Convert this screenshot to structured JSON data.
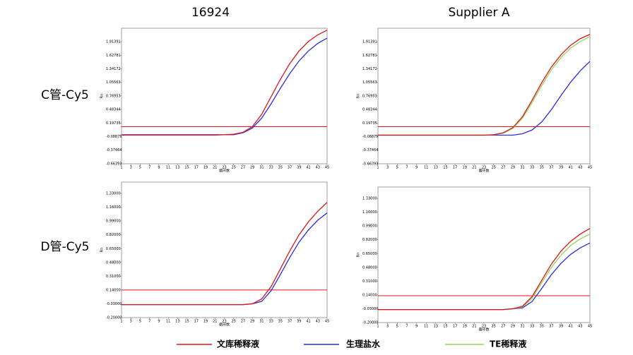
{
  "columns": [
    "16924",
    "Supplier A"
  ],
  "rows": [
    "C管-Cy5",
    "D管-Cy5"
  ],
  "legend": [
    {
      "name": "文库稀释液",
      "color": "#e0151b"
    },
    {
      "name": "生理盐水",
      "color": "#2a2de0"
    },
    {
      "name": "TE稀释液",
      "color": "#8ed65a"
    }
  ],
  "chart_data": [
    {
      "type": "line",
      "xlabel": "循环数",
      "ylabel": "Rn",
      "x": [
        1,
        3,
        5,
        7,
        9,
        11,
        13,
        15,
        17,
        19,
        21,
        23,
        25,
        27,
        29,
        31,
        33,
        35,
        37,
        39,
        41,
        43,
        45
      ],
      "xlim": [
        1,
        45
      ],
      "xticks": [
        1,
        3,
        5,
        7,
        9,
        11,
        13,
        15,
        17,
        19,
        21,
        23,
        25,
        27,
        29,
        31,
        33,
        35,
        37,
        39,
        41,
        43,
        45
      ],
      "ylim": [
        -0.66393,
        2.2
      ],
      "yticks": [
        -0.66393,
        -0.37464,
        -0.08875,
        0.19735,
        0.48344,
        0.76953,
        1.05563,
        1.34172,
        1.62781,
        1.91391
      ],
      "threshold": 0.12,
      "threshold_color": "#e0151b",
      "series": [
        {
          "color": "#2a2de0",
          "values": [
            -0.05,
            -0.05,
            -0.05,
            -0.05,
            -0.05,
            -0.05,
            -0.05,
            -0.05,
            -0.05,
            -0.05,
            -0.05,
            -0.05,
            -0.05,
            -0.01,
            0.09,
            0.3,
            0.6,
            0.93,
            1.24,
            1.51,
            1.72,
            1.88,
            1.99
          ]
        },
        {
          "color": "#e0151b",
          "values": [
            -0.06,
            -0.06,
            -0.06,
            -0.06,
            -0.06,
            -0.06,
            -0.06,
            -0.06,
            -0.06,
            -0.06,
            -0.06,
            -0.05,
            -0.04,
            0.0,
            0.12,
            0.38,
            0.75,
            1.12,
            1.45,
            1.72,
            1.92,
            2.06,
            2.16
          ]
        }
      ]
    },
    {
      "type": "line",
      "xlabel": "循环数",
      "ylabel": "Rn",
      "x": [
        1,
        3,
        5,
        7,
        9,
        11,
        13,
        15,
        17,
        19,
        21,
        23,
        25,
        27,
        29,
        31,
        33,
        35,
        37,
        39,
        41,
        43,
        45
      ],
      "xlim": [
        1,
        45
      ],
      "xticks": [
        1,
        3,
        5,
        7,
        9,
        11,
        13,
        15,
        17,
        19,
        21,
        23,
        25,
        27,
        29,
        31,
        33,
        35,
        37,
        39,
        41,
        43,
        45
      ],
      "ylim": [
        -0.66393,
        2.2
      ],
      "yticks": [
        -0.66393,
        -0.37464,
        -0.08875,
        0.19735,
        0.48344,
        0.76953,
        1.05563,
        1.34172,
        1.62781,
        1.91391
      ],
      "threshold": 0.12,
      "threshold_color": "#e0151b",
      "series": [
        {
          "color": "#2a2de0",
          "values": [
            -0.06,
            -0.06,
            -0.06,
            -0.06,
            -0.06,
            -0.06,
            -0.06,
            -0.06,
            -0.06,
            -0.06,
            -0.06,
            -0.06,
            -0.06,
            -0.06,
            -0.06,
            -0.03,
            0.05,
            0.22,
            0.48,
            0.78,
            1.06,
            1.3,
            1.5
          ]
        },
        {
          "color": "#8ed65a",
          "values": [
            -0.06,
            -0.06,
            -0.06,
            -0.06,
            -0.06,
            -0.06,
            -0.06,
            -0.06,
            -0.06,
            -0.06,
            -0.06,
            -0.06,
            -0.05,
            -0.02,
            0.08,
            0.3,
            0.63,
            0.99,
            1.32,
            1.58,
            1.78,
            1.92,
            2.02
          ]
        },
        {
          "color": "#e0151b",
          "values": [
            -0.06,
            -0.06,
            -0.06,
            -0.06,
            -0.06,
            -0.06,
            -0.06,
            -0.06,
            -0.06,
            -0.06,
            -0.06,
            -0.06,
            -0.05,
            -0.01,
            0.1,
            0.33,
            0.68,
            1.05,
            1.38,
            1.64,
            1.84,
            1.98,
            2.07
          ]
        }
      ]
    },
    {
      "type": "line",
      "xlabel": "循环数",
      "ylabel": "Rn",
      "x": [
        1,
        3,
        5,
        7,
        9,
        11,
        13,
        15,
        17,
        19,
        21,
        23,
        25,
        27,
        29,
        31,
        33,
        35,
        37,
        39,
        41,
        43,
        45
      ],
      "xlim": [
        1,
        45
      ],
      "xticks": [
        1,
        3,
        5,
        7,
        9,
        11,
        13,
        15,
        17,
        19,
        21,
        23,
        25,
        27,
        29,
        31,
        33,
        35,
        37,
        39,
        41,
        43,
        45
      ],
      "ylim": [
        -0.2,
        1.47
      ],
      "yticks": [
        {
          "value": -0.2,
          "label": "-0.20000"
        },
        {
          "value": -0.03,
          "label": "-0.03000"
        },
        {
          "value": 0.14,
          "label": "0.14000"
        },
        {
          "value": 0.31,
          "label": "0.31000"
        },
        {
          "value": 0.48,
          "label": "0.48000"
        },
        {
          "value": 0.65,
          "label": "0.65000"
        },
        {
          "value": 0.82,
          "label": "0.82000"
        },
        {
          "value": 0.99,
          "label": "0.99000"
        },
        {
          "value": 1.16,
          "label": "1.16000"
        },
        {
          "value": 1.33,
          "label": "1.33000"
        }
      ],
      "threshold": 0.14,
      "threshold_color": "#e0151b",
      "series": [
        {
          "color": "#2a2de0",
          "values": [
            -0.04,
            -0.04,
            -0.04,
            -0.04,
            -0.04,
            -0.04,
            -0.04,
            -0.04,
            -0.04,
            -0.04,
            -0.04,
            -0.04,
            -0.04,
            -0.04,
            -0.03,
            0.0,
            0.13,
            0.33,
            0.54,
            0.73,
            0.88,
            1.0,
            1.09
          ]
        },
        {
          "color": "#e0151b",
          "values": [
            -0.04,
            -0.04,
            -0.04,
            -0.04,
            -0.04,
            -0.04,
            -0.04,
            -0.04,
            -0.04,
            -0.04,
            -0.04,
            -0.04,
            -0.04,
            -0.04,
            -0.03,
            0.03,
            0.18,
            0.4,
            0.62,
            0.82,
            0.98,
            1.11,
            1.22
          ]
        }
      ]
    },
    {
      "type": "line",
      "xlabel": "循环数",
      "ylabel": "Rn",
      "x": [
        1,
        3,
        5,
        7,
        9,
        11,
        13,
        15,
        17,
        19,
        21,
        23,
        25,
        27,
        29,
        31,
        33,
        35,
        37,
        39,
        41,
        43,
        45
      ],
      "xlim": [
        1,
        45
      ],
      "xticks": [
        1,
        3,
        5,
        7,
        9,
        11,
        13,
        15,
        17,
        19,
        21,
        23,
        25,
        27,
        29,
        31,
        33,
        35,
        37,
        39,
        41,
        43,
        45
      ],
      "ylim": [
        -0.2,
        1.47
      ],
      "yticks": [
        {
          "value": -0.2,
          "label": "-0.20000"
        },
        {
          "value": -0.03,
          "label": "-0.03000"
        },
        {
          "value": 0.14,
          "label": "0.14000"
        },
        {
          "value": 0.31,
          "label": "0.31000"
        },
        {
          "value": 0.48,
          "label": "0.48000"
        },
        {
          "value": 0.65,
          "label": "0.65000"
        },
        {
          "value": 0.82,
          "label": "0.82000"
        },
        {
          "value": 0.99,
          "label": "0.99000"
        },
        {
          "value": 1.16,
          "label": "1.16000"
        },
        {
          "value": 1.33,
          "label": "1.33000"
        }
      ],
      "threshold": 0.13,
      "threshold_color": "#e0151b",
      "series": [
        {
          "color": "#2a2de0",
          "values": [
            -0.04,
            -0.04,
            -0.04,
            -0.04,
            -0.04,
            -0.04,
            -0.04,
            -0.04,
            -0.04,
            -0.04,
            -0.04,
            -0.04,
            -0.04,
            -0.04,
            -0.03,
            -0.02,
            0.06,
            0.22,
            0.39,
            0.53,
            0.64,
            0.72,
            0.78
          ]
        },
        {
          "color": "#8ed65a",
          "values": [
            -0.04,
            -0.04,
            -0.04,
            -0.04,
            -0.04,
            -0.04,
            -0.04,
            -0.04,
            -0.04,
            -0.04,
            -0.04,
            -0.04,
            -0.04,
            -0.04,
            -0.03,
            -0.01,
            0.1,
            0.29,
            0.48,
            0.63,
            0.75,
            0.83,
            0.89
          ]
        },
        {
          "color": "#e0151b",
          "values": [
            -0.04,
            -0.04,
            -0.04,
            -0.04,
            -0.04,
            -0.04,
            -0.04,
            -0.04,
            -0.04,
            -0.04,
            -0.04,
            -0.04,
            -0.04,
            -0.04,
            -0.03,
            0.0,
            0.12,
            0.32,
            0.52,
            0.68,
            0.8,
            0.89,
            0.96
          ]
        }
      ]
    }
  ]
}
